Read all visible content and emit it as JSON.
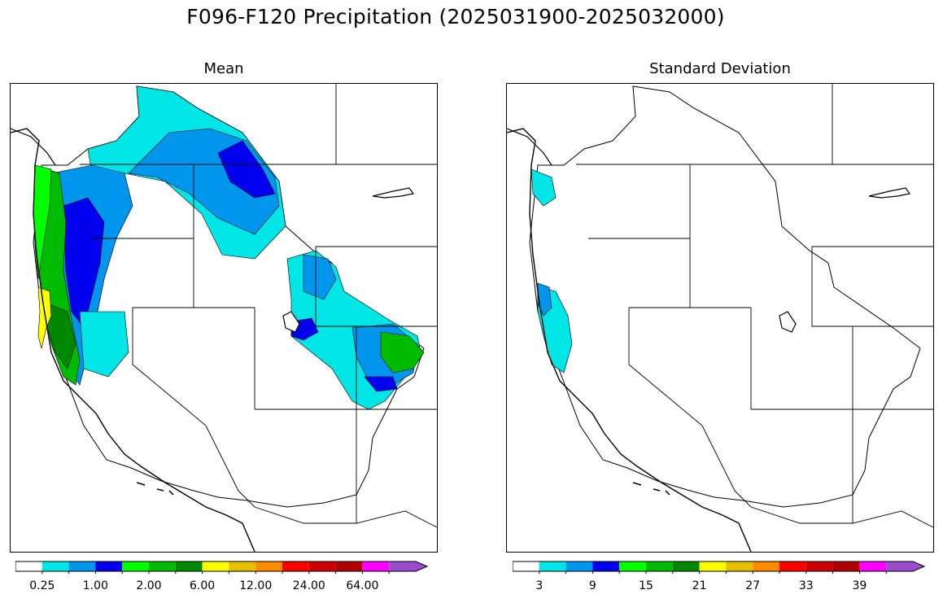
{
  "figure": {
    "title": "F096-F120 Precipitation (2025031900-2025032000)"
  },
  "panels": [
    {
      "id": "mean",
      "title": "Mean",
      "colorbar": {
        "colors": [
          "#ffffff",
          "#00e5e5",
          "#0096ee",
          "#0000ee",
          "#00ff00",
          "#00bb00",
          "#008800",
          "#ffff00",
          "#e5c100",
          "#ff8c00",
          "#ff0000",
          "#cc0000",
          "#b00000",
          "#ff00ff",
          "#9b4dcc"
        ],
        "labels": [
          "0.25",
          "1.00",
          "2.00",
          "6.00",
          "12.00",
          "24.00",
          "64.00"
        ],
        "extend": "max"
      }
    },
    {
      "id": "std",
      "title": "Standard Deviation",
      "colorbar": {
        "colors": [
          "#ffffff",
          "#00e5e5",
          "#0096ee",
          "#0000ee",
          "#00ff00",
          "#00bb00",
          "#008800",
          "#ffff00",
          "#e5c100",
          "#ff8c00",
          "#ff0000",
          "#cc0000",
          "#b00000",
          "#ff00ff",
          "#9b4dcc"
        ],
        "labels": [
          "3",
          "9",
          "15",
          "21",
          "27",
          "33",
          "39"
        ],
        "extend": "max"
      }
    }
  ]
}
